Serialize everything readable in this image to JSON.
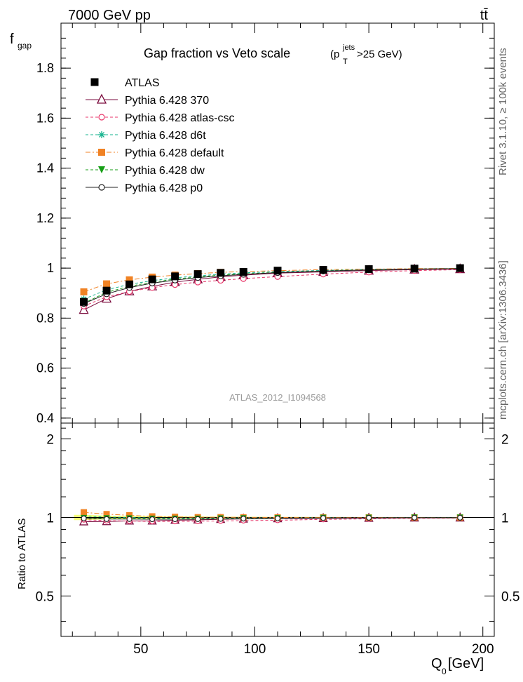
{
  "header": {
    "energy": "7000 GeV pp",
    "process": "tt̄",
    "side_generator": "Rivet 3.1.10, ≥ 100k events",
    "side_site": "mcplots.cern.ch [arXiv:1306.3436]",
    "analysis_id": "ATLAS_2012_I1094568"
  },
  "chart_data": [
    {
      "type": "line",
      "title_main": "Gap fraction vs Veto scale",
      "title_cut": "(p",
      "title_cut_sup": "jets",
      "title_cut_sub": "T",
      "title_cut_tail": ">25 GeV)",
      "ylabel": "f",
      "ylabel_sub": "gap",
      "xlim": [
        15,
        205
      ],
      "ylim": [
        0.38,
        1.98
      ],
      "yticks": [
        0.4,
        0.6,
        0.8,
        1.0,
        1.2,
        1.4,
        1.6,
        1.8
      ],
      "ytick_labels": [
        "0.4",
        "0.6",
        "0.8",
        "1",
        "1.2",
        "1.4",
        "1.6",
        "1.8"
      ],
      "x": [
        25,
        35,
        45,
        55,
        65,
        75,
        85,
        95,
        110,
        130,
        150,
        170,
        190
      ],
      "reference": {
        "name": "ATLAS",
        "values": [
          0.865,
          0.91,
          0.935,
          0.955,
          0.967,
          0.976,
          0.981,
          0.985,
          0.99,
          0.993,
          0.996,
          0.998,
          1.0
        ],
        "errors": [
          0.02,
          0.015,
          0.012,
          0.01,
          0.009,
          0.008,
          0.007,
          0.006,
          0.005,
          0.004,
          0.003,
          0.003,
          0.002
        ]
      },
      "series": [
        {
          "name": "Pythia 6.428 370",
          "color": "#7a0a3c",
          "marker": "triangle-open",
          "dash": "solid",
          "values": [
            0.833,
            0.878,
            0.907,
            0.927,
            0.944,
            0.955,
            0.965,
            0.972,
            0.98,
            0.985,
            0.99,
            0.994,
            0.996
          ]
        },
        {
          "name": "Pythia 6.428 atlas-csc",
          "color": "#e8366a",
          "marker": "circle-open",
          "dash": "dashed",
          "values": [
            0.848,
            0.885,
            0.906,
            0.922,
            0.934,
            0.944,
            0.951,
            0.958,
            0.966,
            0.976,
            0.984,
            0.99,
            0.994
          ]
        },
        {
          "name": "Pythia 6.428 d6t",
          "color": "#17b38f",
          "marker": "star",
          "dash": "dashed",
          "values": [
            0.876,
            0.913,
            0.935,
            0.95,
            0.961,
            0.969,
            0.976,
            0.981,
            0.986,
            0.991,
            0.995,
            0.997,
            0.999
          ]
        },
        {
          "name": "Pythia 6.428 default",
          "color": "#f08224",
          "marker": "square",
          "dash": "dashdot",
          "values": [
            0.905,
            0.937,
            0.953,
            0.964,
            0.972,
            0.978,
            0.983,
            0.986,
            0.99,
            0.994,
            0.996,
            0.998,
            0.999
          ]
        },
        {
          "name": "Pythia 6.428 dw",
          "color": "#179f17",
          "marker": "triangle-down",
          "dash": "dashed",
          "values": [
            0.86,
            0.903,
            0.927,
            0.944,
            0.956,
            0.965,
            0.972,
            0.977,
            0.983,
            0.989,
            0.993,
            0.996,
            0.998
          ]
        },
        {
          "name": "Pythia 6.428 p0",
          "color": "#222222",
          "marker": "circle-open",
          "dash": "solid",
          "values": [
            0.858,
            0.897,
            0.922,
            0.94,
            0.952,
            0.962,
            0.969,
            0.975,
            0.982,
            0.988,
            0.993,
            0.996,
            0.998
          ]
        }
      ]
    },
    {
      "type": "line",
      "ylabel": "Ratio to ATLAS",
      "xlabel": "Q",
      "xlabel_sub": "0",
      "xlabel_tail": " [GeV]",
      "xlim": [
        15,
        205
      ],
      "ylim": [
        0.35,
        2.3
      ],
      "xticks": [
        50,
        100,
        150,
        200
      ],
      "xtick_labels": [
        "50",
        "100",
        "150",
        "200"
      ],
      "yticks": [
        0.5,
        1.0,
        2.0
      ],
      "ytick_labels": [
        "0.5",
        "1",
        "2"
      ],
      "note": "ratio of each series to the ATLAS reference"
    }
  ]
}
